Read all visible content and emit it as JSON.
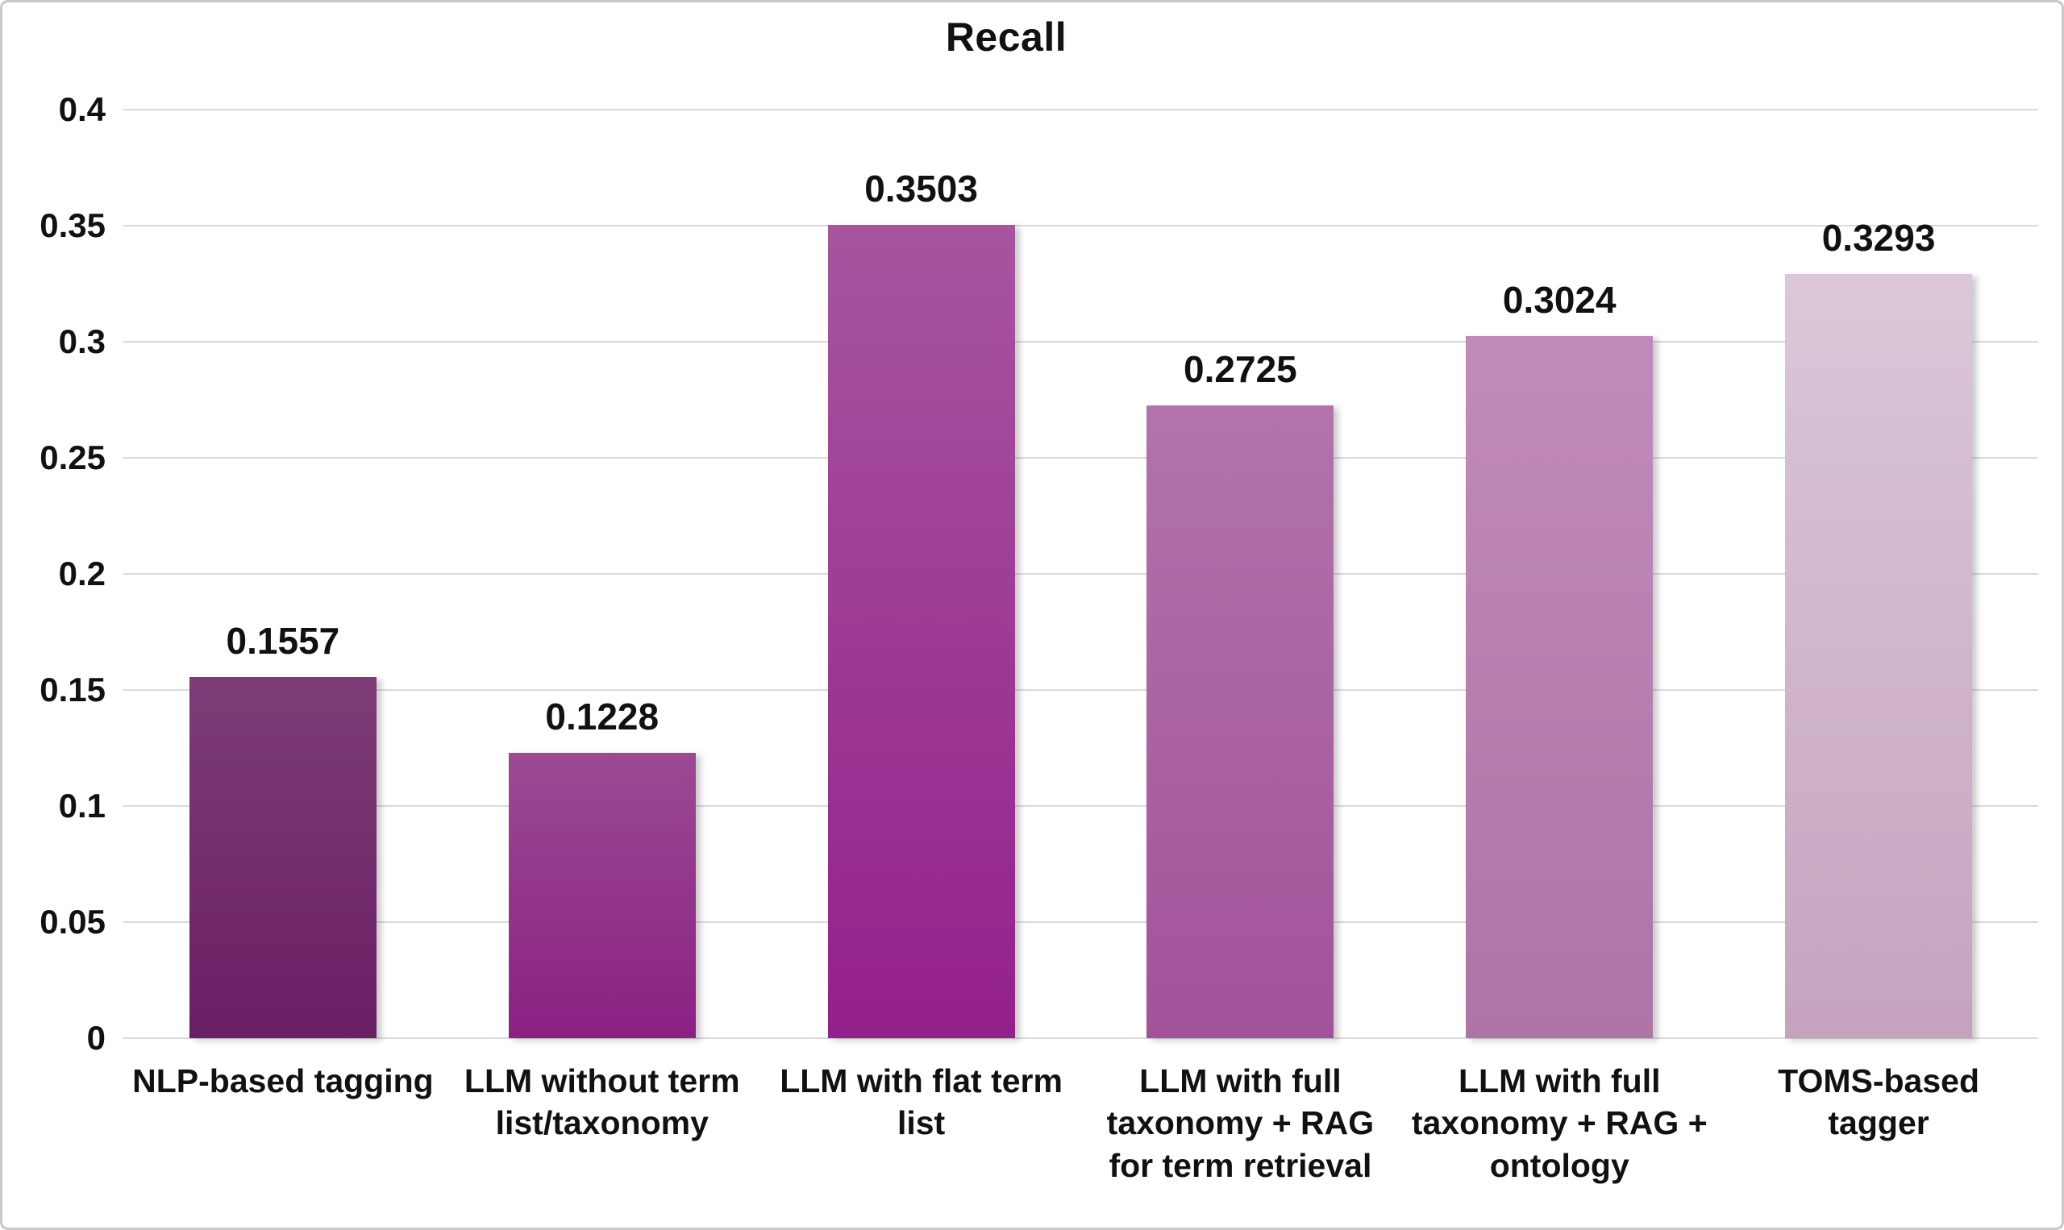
{
  "chart_data": {
    "type": "bar",
    "title": "Recall",
    "xlabel": "",
    "ylabel": "",
    "categories": [
      "NLP-based tagging",
      "LLM without term list/taxonomy",
      "LLM with flat term list",
      "LLM with full taxonomy + RAG for term retrieval",
      "LLM with full taxonomy + RAG + ontology",
      "TOMS-based tagger"
    ],
    "category_lines": [
      [
        "NLP-based tagging"
      ],
      [
        "LLM without term",
        "list/taxonomy"
      ],
      [
        "LLM with flat term",
        "list"
      ],
      [
        "LLM with full",
        "taxonomy + RAG",
        "for term retrieval"
      ],
      [
        "LLM with full",
        "taxonomy + RAG +",
        "ontology"
      ],
      [
        "TOMS-based",
        "tagger"
      ]
    ],
    "values": [
      0.1557,
      0.1228,
      0.3503,
      0.2725,
      0.3024,
      0.3293
    ],
    "value_labels": [
      "0.1557",
      "0.1228",
      "0.3503",
      "0.2725",
      "0.3024",
      "0.3293"
    ],
    "bar_gradients": [
      {
        "top": "#7d3c78",
        "bottom": "#6a1f64"
      },
      {
        "top": "#9b4a93",
        "bottom": "#8b2183"
      },
      {
        "top": "#a7559f",
        "bottom": "#94208b"
      },
      {
        "top": "#b273ac",
        "bottom": "#a2529a"
      },
      {
        "top": "#c18bb9",
        "bottom": "#ad74a5"
      },
      {
        "top": "#dcc7d9",
        "bottom": "#c5a3bf"
      }
    ],
    "ylim": [
      0,
      0.4
    ],
    "yticks": [
      0,
      0.05,
      0.1,
      0.15,
      0.2,
      0.25,
      0.3,
      0.35,
      0.4
    ],
    "ytick_labels": [
      "0",
      "0.05",
      "0.1",
      "0.15",
      "0.2",
      "0.25",
      "0.3",
      "0.35",
      "0.4"
    ],
    "grid": true,
    "gridline_color": "#d9d9d9",
    "legend": "none",
    "text_color": "#111111",
    "background_color": "#ffffff",
    "border_color": "#c9c9c9"
  }
}
